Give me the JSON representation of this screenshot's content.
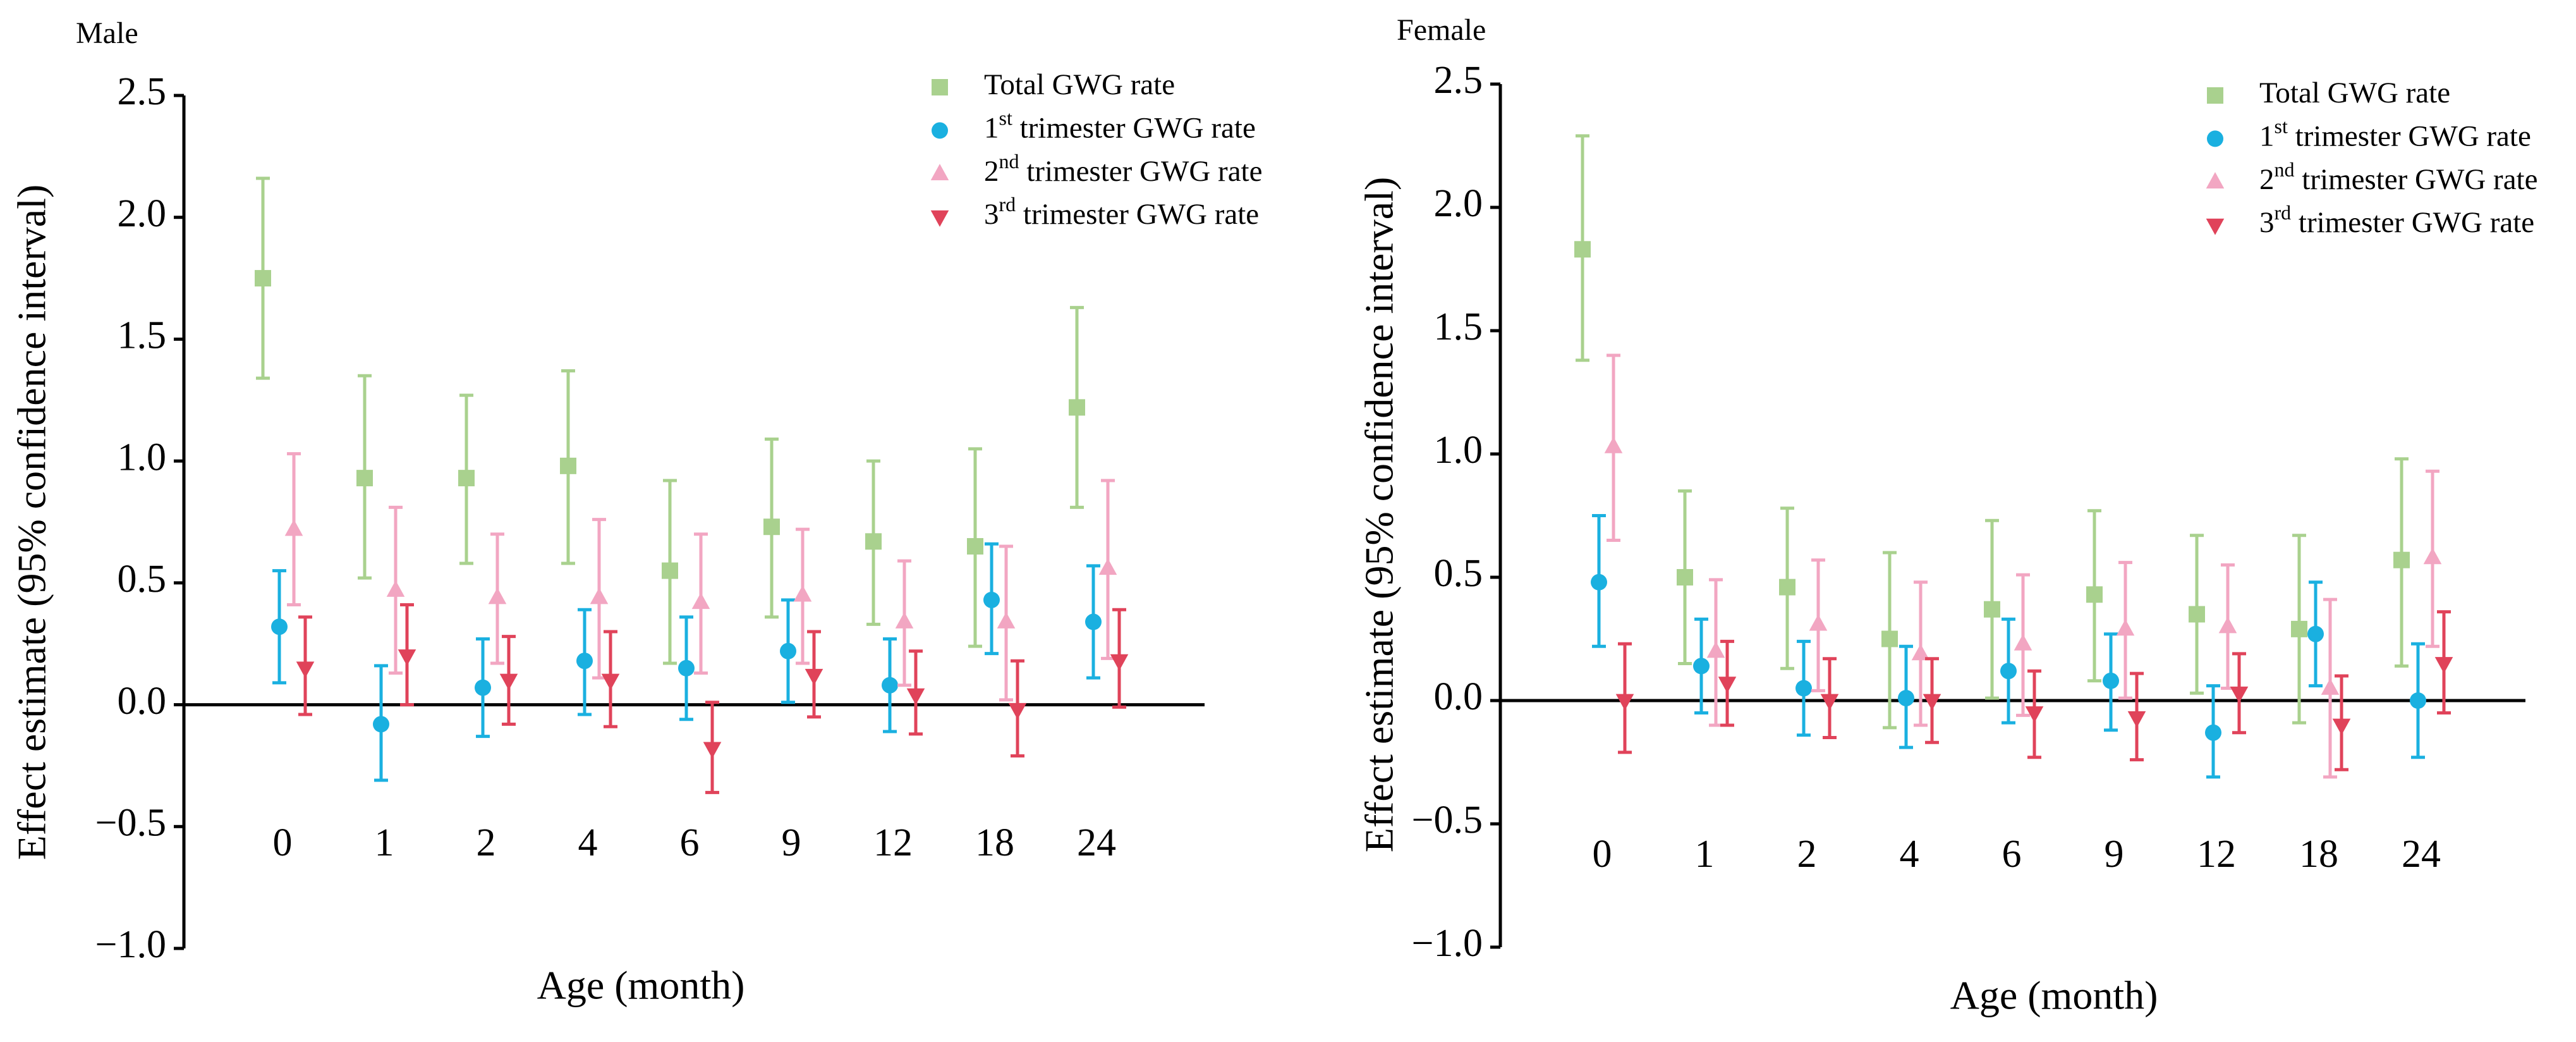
{
  "chart_data": [
    {
      "type": "errorbar",
      "title": "Male",
      "x_label": "Age (month)",
      "y_label": "Effect estimate (95% confidence interval)",
      "categories": [
        "0",
        "1",
        "2",
        "4",
        "6",
        "9",
        "12",
        "18",
        "24"
      ],
      "ylim": [
        -1.0,
        2.5
      ],
      "yticks": [
        {
          "value": -1.0,
          "label": "−1.0"
        },
        {
          "value": -0.5,
          "label": "−0.5"
        },
        {
          "value": 0.0,
          "label": "0.0"
        },
        0.5,
        {
          "value": 1.0,
          "label": "1.0"
        },
        1.5,
        {
          "value": 2.0,
          "label": "2.0"
        },
        2.5
      ],
      "series": [
        {
          "name": "Total GWG rate",
          "color": "#a9d18e",
          "marker": "square",
          "values": [
            1.75,
            0.93,
            0.93,
            0.98,
            0.55,
            0.73,
            0.67,
            0.65,
            1.22
          ],
          "lower": [
            1.34,
            0.52,
            0.58,
            0.58,
            0.17,
            0.36,
            0.33,
            0.24,
            0.81
          ],
          "upper": [
            2.16,
            1.35,
            1.27,
            1.37,
            0.92,
            1.09,
            1.0,
            1.05,
            1.63
          ]
        },
        {
          "name": "1st trimester GWG rate",
          "color": "#1ab0e0",
          "marker": "circle",
          "values": [
            0.32,
            -0.08,
            0.07,
            0.18,
            0.15,
            0.22,
            0.08,
            0.43,
            0.34
          ],
          "lower": [
            0.09,
            -0.31,
            -0.13,
            -0.04,
            -0.06,
            0.01,
            -0.11,
            0.21,
            0.11
          ],
          "upper": [
            0.55,
            0.16,
            0.27,
            0.39,
            0.36,
            0.43,
            0.27,
            0.66,
            0.57
          ]
        },
        {
          "name": "2nd trimester GWG rate",
          "color": "#f2a6c2",
          "marker": "triangle-up",
          "values": [
            0.72,
            0.47,
            0.44,
            0.44,
            0.42,
            0.45,
            0.34,
            0.34,
            0.56
          ],
          "lower": [
            0.41,
            0.13,
            0.17,
            0.11,
            0.13,
            0.17,
            0.08,
            0.02,
            0.19
          ],
          "upper": [
            1.03,
            0.81,
            0.7,
            0.76,
            0.7,
            0.72,
            0.59,
            0.65,
            0.92
          ]
        },
        {
          "name": "3rd trimester GWG rate",
          "color": "#e0435a",
          "marker": "triangle-down",
          "values": [
            0.15,
            0.2,
            0.1,
            0.1,
            -0.18,
            0.12,
            0.04,
            -0.02,
            0.18
          ],
          "lower": [
            -0.04,
            0.0,
            -0.08,
            -0.09,
            -0.36,
            -0.05,
            -0.12,
            -0.21,
            -0.01
          ],
          "upper": [
            0.36,
            0.41,
            0.28,
            0.3,
            0.01,
            0.3,
            0.22,
            0.18,
            0.39
          ]
        }
      ]
    },
    {
      "type": "errorbar",
      "title": "Female",
      "x_label": "Age (month)",
      "y_label": "Effect estimate (95% confidence interval)",
      "categories": [
        "0",
        "1",
        "2",
        "4",
        "6",
        "9",
        "12",
        "18",
        "24"
      ],
      "ylim": [
        -1.0,
        2.5
      ],
      "yticks": [
        {
          "value": -1.0,
          "label": "−1.0"
        },
        {
          "value": -0.5,
          "label": "−0.5"
        },
        {
          "value": 0.0,
          "label": "0.0"
        },
        0.5,
        {
          "value": 1.0,
          "label": "1.0"
        },
        1.5,
        {
          "value": 2.0,
          "label": "2.0"
        },
        2.5
      ],
      "series": [
        {
          "name": "Total GWG rate",
          "color": "#a9d18e",
          "marker": "square",
          "values": [
            1.83,
            0.5,
            0.46,
            0.25,
            0.37,
            0.43,
            0.35,
            0.29,
            0.57
          ],
          "lower": [
            1.38,
            0.15,
            0.13,
            -0.11,
            0.01,
            0.08,
            0.03,
            -0.09,
            0.14
          ],
          "upper": [
            2.29,
            0.85,
            0.78,
            0.6,
            0.73,
            0.77,
            0.67,
            0.67,
            0.98
          ]
        },
        {
          "name": "1st trimester GWG rate",
          "color": "#1ab0e0",
          "marker": "circle",
          "values": [
            0.48,
            0.14,
            0.05,
            0.01,
            0.12,
            0.08,
            -0.13,
            0.27,
            0.0
          ],
          "lower": [
            0.22,
            -0.05,
            -0.14,
            -0.19,
            -0.09,
            -0.12,
            -0.31,
            0.06,
            -0.23
          ],
          "upper": [
            0.75,
            0.33,
            0.24,
            0.22,
            0.33,
            0.27,
            0.06,
            0.48,
            0.23
          ]
        },
        {
          "name": "2nd trimester GWG rate",
          "color": "#f2a6c2",
          "marker": "triangle-up",
          "values": [
            1.03,
            0.2,
            0.31,
            0.19,
            0.23,
            0.29,
            0.3,
            0.05,
            0.58
          ],
          "lower": [
            0.65,
            -0.1,
            0.04,
            -0.1,
            -0.06,
            0.01,
            0.05,
            -0.31,
            0.22
          ],
          "upper": [
            1.4,
            0.49,
            0.57,
            0.48,
            0.51,
            0.56,
            0.55,
            0.41,
            0.93
          ]
        },
        {
          "name": "3rd trimester GWG rate",
          "color": "#e0435a",
          "marker": "triangle-down",
          "values": [
            0.0,
            0.07,
            0.0,
            0.0,
            -0.05,
            -0.07,
            0.03,
            -0.1,
            0.15
          ],
          "lower": [
            -0.21,
            -0.1,
            -0.15,
            -0.17,
            -0.23,
            -0.24,
            -0.13,
            -0.28,
            -0.05
          ],
          "upper": [
            0.23,
            0.24,
            0.17,
            0.17,
            0.12,
            0.11,
            0.19,
            0.1,
            0.36
          ]
        }
      ]
    }
  ]
}
